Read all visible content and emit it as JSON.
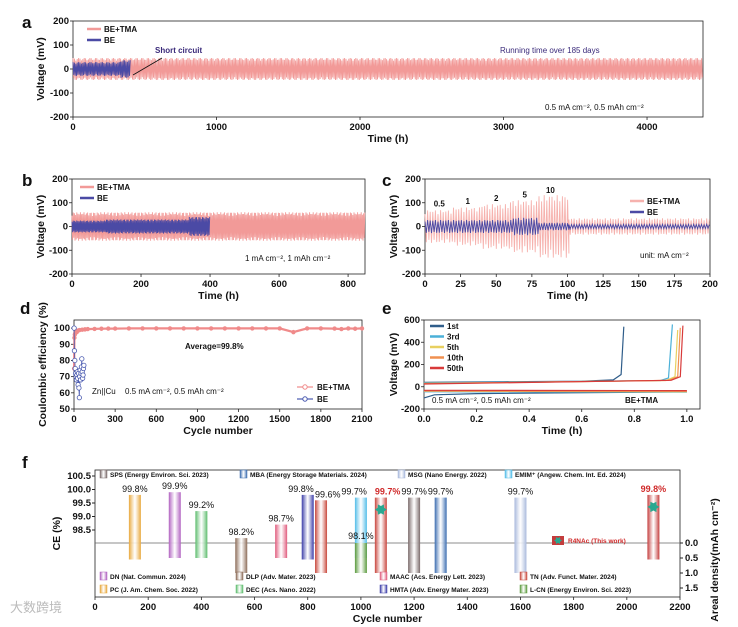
{
  "watermark": "大数跨境",
  "chart_data": [
    {
      "id": "a",
      "panel_label": "a",
      "type": "line",
      "xlabel": "Time (h)",
      "ylabel": "Voltage (mV)",
      "xlim": [
        0,
        4390
      ],
      "ylim": [
        -200,
        200
      ],
      "xticks": [
        0,
        1000,
        2000,
        3000,
        4000
      ],
      "yticks": [
        -200,
        -100,
        0,
        100,
        200
      ],
      "legend_placement": "top-left",
      "annotations": {
        "short": "Short circuit",
        "running": "Running time over 185 days",
        "cond": "0.5 mA cm⁻², 0.5 mAh cm⁻²"
      },
      "series": [
        {
          "name": "BE+TMA",
          "color": "#f29a98",
          "envelope_mV": [
            [
              0,
              4450,
              40
            ]
          ]
        },
        {
          "name": "BE",
          "color": "#4b4aa5",
          "envelope_mV": [
            [
              0,
              330,
              25
            ],
            [
              330,
              400,
              32
            ]
          ]
        }
      ]
    },
    {
      "id": "b",
      "panel_label": "b",
      "type": "line",
      "xlabel": "Time (h)",
      "ylabel": "Voltage (mV)",
      "xlim": [
        0,
        849
      ],
      "ylim": [
        -200,
        200
      ],
      "xticks": [
        0,
        200,
        400,
        600,
        800
      ],
      "yticks": [
        -200,
        -100,
        0,
        100,
        200
      ],
      "legend_placement": "top-left",
      "annotations": {
        "cond": "1 mA cm⁻², 1 mAh cm⁻²"
      },
      "series": [
        {
          "name": "BE+TMA",
          "color": "#f29a98",
          "envelope_mV": [
            [
              0,
              866,
              52
            ]
          ]
        },
        {
          "name": "BE",
          "color": "#4b4aa5",
          "envelope_mV": [
            [
              0,
              100,
              22
            ],
            [
              100,
              340,
              26
            ],
            [
              340,
              400,
              35
            ]
          ]
        }
      ]
    },
    {
      "id": "c",
      "panel_label": "c",
      "type": "line",
      "xlabel": "Time (h)",
      "ylabel": "Voltage (mV)",
      "xlim": [
        0,
        200
      ],
      "ylim": [
        -200,
        200
      ],
      "xticks": [
        0,
        25,
        50,
        75,
        100,
        125,
        150,
        175,
        200
      ],
      "yticks": [
        -200,
        -100,
        0,
        100,
        200
      ],
      "legend_placement": "top-right",
      "annotations": {
        "unit": "unit: mA cm⁻²"
      },
      "rate_labels": [
        {
          "t": 10,
          "text": "0.5"
        },
        {
          "t": 30,
          "text": "1"
        },
        {
          "t": 50,
          "text": "2"
        },
        {
          "t": 70,
          "text": "5"
        },
        {
          "t": 88,
          "text": "10"
        }
      ],
      "series": [
        {
          "name": "BE+TMA",
          "color": "#f6b2ae",
          "envelope_mV": [
            [
              0,
              20,
              60
            ],
            [
              20,
              40,
              70
            ],
            [
              40,
              60,
              82
            ],
            [
              60,
              80,
              96
            ],
            [
              80,
              101,
              115
            ],
            [
              101,
              200,
              30
            ]
          ]
        },
        {
          "name": "BE",
          "color": "#4b4aa5",
          "envelope_mV": [
            [
              0,
              62,
              24
            ],
            [
              62,
              80,
              32
            ],
            [
              80,
              101,
              14
            ],
            [
              101,
              200,
              8
            ]
          ]
        }
      ]
    },
    {
      "id": "d",
      "panel_label": "d",
      "type": "scatter",
      "xlabel": "Cycle number",
      "ylabel": "Coulombic efficiency (%)",
      "xlim": [
        0,
        2100
      ],
      "ylim": [
        50,
        105
      ],
      "xticks": [
        0,
        300,
        600,
        900,
        1200,
        1500,
        1800,
        2100
      ],
      "yticks": [
        50,
        60,
        70,
        80,
        90,
        100
      ],
      "legend_placement": "bottom-right",
      "annotations": {
        "avg": "Average=99.8%",
        "cell": "Zn||Cu",
        "cond": "0.5 mA cm⁻², 0.5 mAh cm⁻²"
      },
      "series": [
        {
          "name": "BE+TMA",
          "color": "#f08a8a",
          "x": [
            1,
            3,
            6,
            10,
            15,
            20,
            30,
            40,
            60,
            80,
            100,
            150,
            200,
            250,
            300,
            400,
            500,
            600,
            700,
            800,
            900,
            1000,
            1100,
            1200,
            1300,
            1400,
            1500,
            1600,
            1700,
            1800,
            1900,
            1950,
            2000,
            2050,
            2100
          ],
          "y": [
            75,
            94,
            96,
            97,
            98,
            97.5,
            98.5,
            98.8,
            99,
            99.2,
            99.4,
            99.5,
            99.6,
            99.7,
            99.7,
            99.8,
            99.8,
            99.8,
            99.8,
            99.8,
            99.8,
            99.8,
            99.8,
            99.8,
            99.8,
            99.8,
            99.8,
            97.5,
            99.8,
            99.8,
            99.7,
            99.4,
            99.8,
            99.6,
            99.8
          ]
        },
        {
          "name": "BE",
          "color": "#4a5ab0",
          "x": [
            1,
            3,
            6,
            9,
            12,
            15,
            18,
            21,
            24,
            27,
            30,
            33,
            36,
            39,
            42,
            45,
            48,
            51,
            54,
            57,
            60,
            63,
            66,
            69,
            72
          ],
          "y": [
            100,
            86,
            80,
            75,
            72,
            70,
            68,
            71,
            73,
            69,
            65,
            72,
            63,
            57,
            70,
            74,
            68,
            72,
            76,
            81,
            73,
            69,
            71,
            75,
            77
          ]
        }
      ]
    },
    {
      "id": "e",
      "panel_label": "e",
      "type": "line",
      "xlabel": "Time (h)",
      "ylabel": "Voltage (mV)",
      "xlim": [
        0,
        1.05
      ],
      "ylim": [
        -200,
        600
      ],
      "xticks": [
        0.0,
        0.2,
        0.4,
        0.6,
        0.8,
        1.0
      ],
      "yticks": [
        -200,
        0,
        200,
        400,
        600
      ],
      "legend_placement": "top-left",
      "annotations": {
        "cond": "0.5 mA cm⁻², 0.5 mAh cm⁻²",
        "electrolyte": "BE+TMA"
      },
      "series": [
        {
          "name": "1st",
          "color": "#2f5d8a",
          "charge": [
            [
              0,
              40
            ],
            [
              0.3,
              45
            ],
            [
              0.6,
              50
            ],
            [
              0.72,
              62
            ],
            [
              0.75,
              110
            ],
            [
              0.76,
              540
            ]
          ],
          "discharge": [
            [
              0,
              -100
            ],
            [
              0.04,
              -72
            ],
            [
              0.2,
              -62
            ],
            [
              1.0,
              -45
            ]
          ]
        },
        {
          "name": "3rd",
          "color": "#4bb0d8",
          "charge": [
            [
              0,
              35
            ],
            [
              0.5,
              45
            ],
            [
              0.9,
              56
            ],
            [
              0.93,
              80
            ],
            [
              0.945,
              560
            ]
          ],
          "discharge": [
            [
              0,
              -45
            ],
            [
              1.0,
              -48
            ]
          ]
        },
        {
          "name": "5th",
          "color": "#e8d060",
          "charge": [
            [
              0,
              30
            ],
            [
              0.5,
              44
            ],
            [
              0.92,
              56
            ],
            [
              0.955,
              90
            ],
            [
              0.965,
              510
            ]
          ],
          "discharge": [
            [
              0,
              -40
            ],
            [
              1.0,
              -45
            ]
          ]
        },
        {
          "name": "10th",
          "color": "#f09050",
          "charge": [
            [
              0,
              28
            ],
            [
              0.5,
              44
            ],
            [
              0.93,
              57
            ],
            [
              0.965,
              90
            ],
            [
              0.975,
              530
            ]
          ],
          "discharge": [
            [
              0,
              -38
            ],
            [
              1.0,
              -42
            ]
          ]
        },
        {
          "name": "50th",
          "color": "#d83a3a",
          "charge": [
            [
              0,
              25
            ],
            [
              0.5,
              43
            ],
            [
              0.94,
              58
            ],
            [
              0.975,
              90
            ],
            [
              0.985,
              550
            ]
          ],
          "discharge": [
            [
              0,
              -32
            ],
            [
              1.0,
              -35
            ]
          ]
        }
      ]
    },
    {
      "id": "f",
      "panel_label": "f",
      "type": "bar",
      "xlabel": "Cycle number",
      "ylabel": "CE  (%)",
      "y2label": "Areal density(mAh cm⁻²)",
      "xlim": [
        0,
        2200
      ],
      "ylim": [
        98.0,
        100.5
      ],
      "y2lim": [
        0,
        1.5
      ],
      "xticks": [
        0,
        200,
        400,
        600,
        800,
        1000,
        1200,
        1400,
        1600,
        1800,
        2000,
        2200
      ],
      "yticks": [
        98.5,
        99.0,
        99.5,
        100.0,
        100.5
      ],
      "y2ticks": [
        0.0,
        0.5,
        1.0,
        1.5
      ],
      "bars": [
        {
          "name": "PC",
          "ref": "PC (J. Am. Chem. Soc. 2022)",
          "cycle": 150,
          "ce": 99.8,
          "areal": 0.55,
          "color": "#e8a83c",
          "label": "99.8%"
        },
        {
          "name": "DN",
          "ref": "DN (Nat. Commun. 2024)",
          "cycle": 300,
          "ce": 99.9,
          "areal": 0.5,
          "color": "#b060c0",
          "label": "99.9%"
        },
        {
          "name": "DEC",
          "ref": "DEC (Acs. Nano. 2022)",
          "cycle": 400,
          "ce": 99.2,
          "areal": 0.5,
          "color": "#5cbc6c",
          "label": "99.2%"
        },
        {
          "name": "DLP",
          "ref": "DLP (Adv. Mater. 2023)",
          "cycle": 550,
          "ce": 98.2,
          "areal": 1.0,
          "color": "#8c6c58",
          "label": "98.2%"
        },
        {
          "name": "MAAC",
          "ref": "MAAC (Acs. Energy Lett. 2023)",
          "cycle": 700,
          "ce": 98.7,
          "areal": 0.5,
          "color": "#e05a7c",
          "label": "98.7%"
        },
        {
          "name": "HMTA",
          "ref": "HMTA (Adv. Energy Mater. 2023)",
          "cycle": 800,
          "ce": 99.8,
          "areal": 0.55,
          "color": "#3a3ca8",
          "label": "99.8%"
        },
        {
          "name": "TN",
          "ref": "TN (Adv. Funct. Mater. 2024)",
          "cycle": 850,
          "ce": 99.6,
          "areal": 1.0,
          "color": "#c8483c",
          "label": "99.6%"
        },
        {
          "name": "EMIM⁺",
          "ref": "EMIM⁺ (Angew. Chem. Int. Ed. 2024)",
          "cycle": 1000,
          "ce": 99.7,
          "areal": 0.5,
          "color": "#50bce8",
          "label": "99.7%"
        },
        {
          "name": "L-CN",
          "ref": "L-CN (Energy Environ. Sci. 2023)",
          "cycle": 1000,
          "ce": 98.1,
          "areal": 1.0,
          "color": "#5a9a3c",
          "label": "98.1%",
          "lower_only": true
        },
        {
          "name": "TN-highlight",
          "cycle": 1075,
          "ce": 99.7,
          "areal": 1.0,
          "color": "#c8443c",
          "label": "99.7%",
          "highlight": true
        },
        {
          "name": "SPS",
          "ref": "SPS (Energy Environ. Sci. 2023)",
          "cycle": 1200,
          "ce": 99.7,
          "areal": 1.0,
          "color": "#7a6a6a",
          "label": "99.7%"
        },
        {
          "name": "MBA",
          "ref": "MBA (Energy Storage Materials. 2024)",
          "cycle": 1300,
          "ce": 99.7,
          "areal": 1.0,
          "color": "#3a6cb0",
          "label": "99.7%"
        },
        {
          "name": "MSG",
          "ref": "MSG (Nano Energy. 2022)",
          "cycle": 1600,
          "ce": 99.7,
          "areal": 1.0,
          "color": "#a8b8dc",
          "label": "99.7%"
        },
        {
          "name": "R4NAc",
          "ref": "R4NAc (This work)",
          "cycle": 2100,
          "ce": 99.8,
          "areal": 0.55,
          "color": "#c43c3c",
          "label": "99.8%",
          "highlight": true
        }
      ],
      "legend_top": [
        "SPS",
        "MBA",
        "MSG",
        "EMIM⁺"
      ],
      "legend_bottom1": [
        "DN",
        "DLP",
        "MAAC",
        "TN"
      ],
      "legend_bottom2": [
        "PC",
        "DEC",
        "HMTA",
        "L-CN"
      ],
      "this_work": "R4NAc (This work)"
    }
  ]
}
